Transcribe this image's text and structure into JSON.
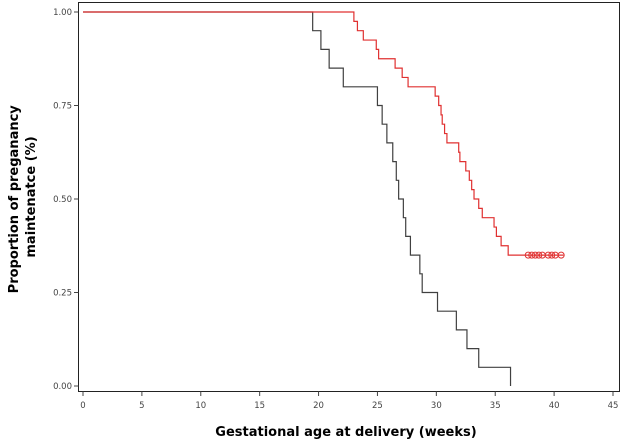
{
  "chart_data": {
    "type": "line",
    "subtype": "kaplan-meier step",
    "xlabel": "Gestational age at delivery (weeks)",
    "ylabel_lines": [
      "Proportion of preganancy",
      "maintenatce (%)"
    ],
    "xlim": [
      0,
      45
    ],
    "ylim": [
      0,
      1
    ],
    "x_ticks": [
      0,
      5,
      10,
      15,
      20,
      25,
      30,
      35,
      40,
      45
    ],
    "x_tick_labels": [
      "0",
      "5",
      "10",
      "15",
      "20",
      "25",
      "30",
      "35",
      "40",
      "45"
    ],
    "y_ticks": [
      0,
      0.25,
      0.5,
      0.75,
      1.0
    ],
    "y_tick_labels": [
      "0.00",
      "0.25",
      "0.50",
      "0.75",
      "1.00"
    ],
    "grid": false,
    "series": [
      {
        "color": "#404040",
        "censored_marker": "none",
        "points": [
          [
            0,
            1.0
          ],
          [
            19.5,
            0.95
          ],
          [
            20.2,
            0.9
          ],
          [
            20.9,
            0.85
          ],
          [
            22.1,
            0.8
          ],
          [
            25.0,
            0.75
          ],
          [
            25.4,
            0.7
          ],
          [
            25.8,
            0.65
          ],
          [
            26.3,
            0.6
          ],
          [
            26.6,
            0.55
          ],
          [
            26.8,
            0.5
          ],
          [
            27.2,
            0.45
          ],
          [
            27.4,
            0.4
          ],
          [
            27.8,
            0.35
          ],
          [
            28.6,
            0.3
          ],
          [
            28.8,
            0.25
          ],
          [
            30.1,
            0.2
          ],
          [
            31.7,
            0.15
          ],
          [
            32.6,
            0.1
          ],
          [
            33.6,
            0.05
          ],
          [
            36.3,
            0.0
          ]
        ]
      },
      {
        "color": "#e03030",
        "censored_marker": "circle",
        "points": [
          [
            0,
            1.0
          ],
          [
            23.0,
            0.975
          ],
          [
            23.3,
            0.95
          ],
          [
            23.8,
            0.925
          ],
          [
            24.9,
            0.9
          ],
          [
            25.1,
            0.875
          ],
          [
            26.5,
            0.85
          ],
          [
            27.1,
            0.825
          ],
          [
            27.6,
            0.8
          ],
          [
            29.9,
            0.775
          ],
          [
            30.2,
            0.75
          ],
          [
            30.4,
            0.725
          ],
          [
            30.5,
            0.7
          ],
          [
            30.7,
            0.675
          ],
          [
            30.9,
            0.65
          ],
          [
            31.9,
            0.625
          ],
          [
            32.0,
            0.6
          ],
          [
            32.5,
            0.575
          ],
          [
            32.8,
            0.55
          ],
          [
            33.0,
            0.525
          ],
          [
            33.2,
            0.5
          ],
          [
            33.6,
            0.475
          ],
          [
            33.9,
            0.45
          ],
          [
            34.9,
            0.425
          ],
          [
            35.1,
            0.4
          ],
          [
            35.5,
            0.375
          ],
          [
            36.1,
            0.35
          ],
          [
            40.8,
            0.35
          ]
        ],
        "censored_x": [
          37.8,
          38.1,
          38.4,
          38.7,
          39.0,
          39.5,
          39.8,
          40.1,
          40.6
        ]
      }
    ]
  }
}
